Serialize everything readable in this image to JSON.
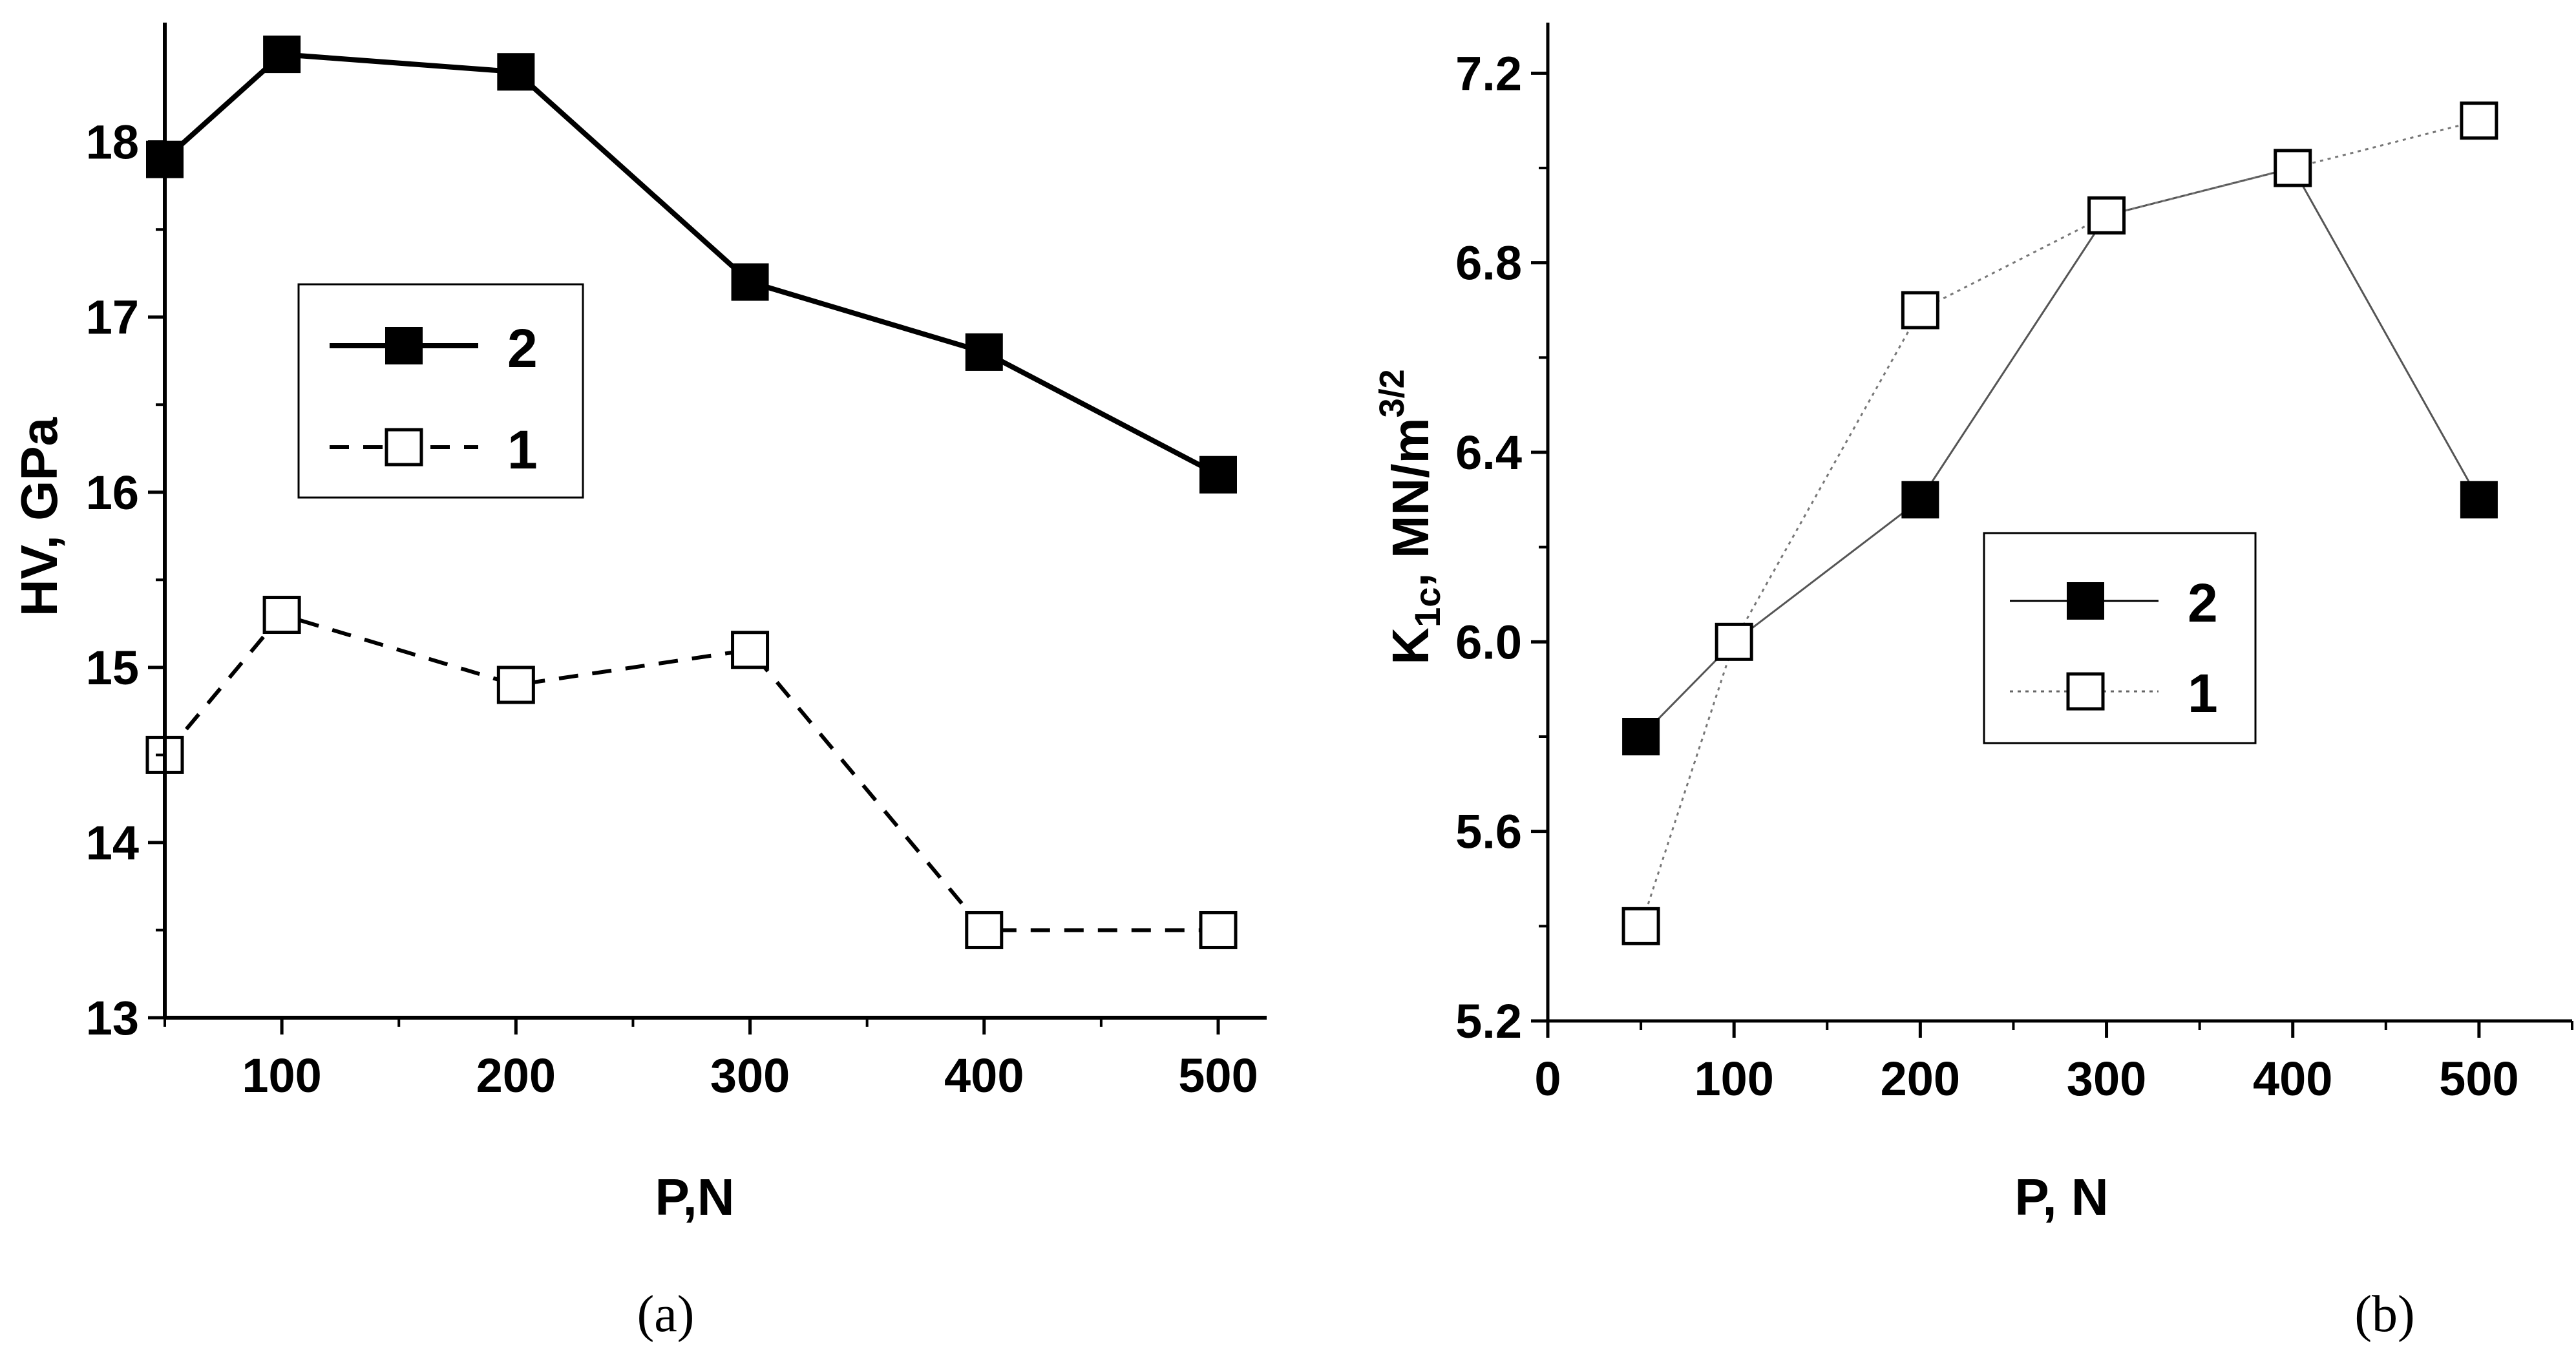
{
  "chart_data": [
    {
      "type": "line",
      "panel": "(a)",
      "xlabel": "P,N",
      "ylabel": "HV, GPa",
      "xlim": [
        50,
        500
      ],
      "ylim": [
        13,
        18.6
      ],
      "xticks": [
        100,
        200,
        300,
        400,
        500
      ],
      "yticks": [
        13,
        14,
        15,
        16,
        17,
        18
      ],
      "legend_position": "center-left",
      "series": [
        {
          "name": "2",
          "marker": "filled-square",
          "line": "solid",
          "x": [
            50,
            100,
            200,
            300,
            400,
            500
          ],
          "y": [
            17.9,
            18.5,
            18.4,
            17.2,
            16.8,
            16.1
          ]
        },
        {
          "name": "1",
          "marker": "open-square",
          "line": "dashed",
          "x": [
            50,
            100,
            200,
            300,
            400,
            500
          ],
          "y": [
            14.5,
            15.3,
            14.9,
            15.1,
            13.5,
            13.5
          ]
        }
      ]
    },
    {
      "type": "line",
      "panel": "(b)",
      "xlabel": "P, N",
      "ylabel_main": "K",
      "ylabel_sub": "1c",
      "ylabel_units": ", MN/m",
      "ylabel_sup": "3/2",
      "xlim": [
        0,
        550
      ],
      "ylim": [
        5.2,
        7.3
      ],
      "xticks": [
        0,
        100,
        200,
        300,
        400,
        500
      ],
      "yticks": [
        "5.2",
        "5.6",
        "6.0",
        "6.4",
        "6.8",
        "7.2"
      ],
      "legend_position": "center-right",
      "series": [
        {
          "name": "2",
          "marker": "filled-square",
          "line": "solid",
          "x": [
            50,
            100,
            200,
            300,
            400,
            500
          ],
          "y": [
            5.8,
            6.0,
            6.3,
            6.9,
            7.0,
            6.3
          ]
        },
        {
          "name": "1",
          "marker": "open-square",
          "line": "dotted",
          "x": [
            50,
            100,
            200,
            300,
            400,
            500
          ],
          "y": [
            5.4,
            6.0,
            6.7,
            6.9,
            7.0,
            7.1
          ]
        }
      ]
    }
  ]
}
